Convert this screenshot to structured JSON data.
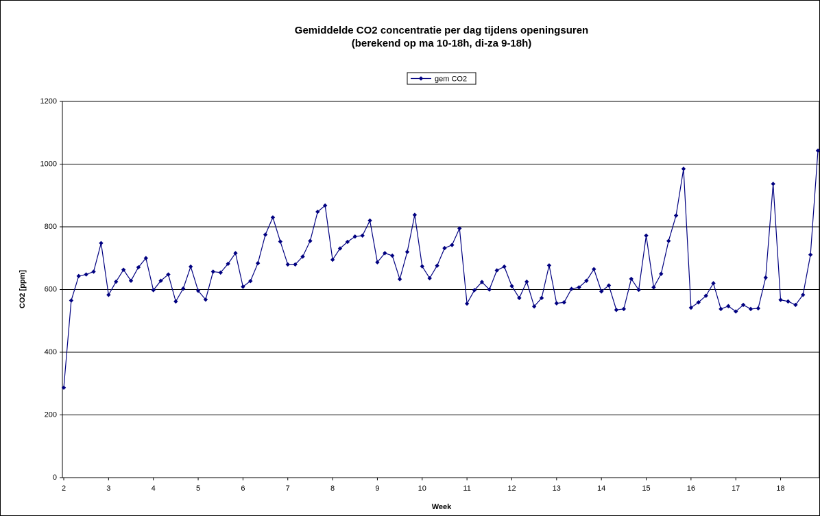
{
  "chart_data": {
    "type": "line",
    "title": "Gemiddelde CO2 concentratie per dag tijdens openingsuren",
    "subtitle": "(berekend op ma 10-18h, di-za 9-18h)",
    "x_label": "Week",
    "y_label": "CO2 [ppm]",
    "categories": [
      "2",
      null,
      null,
      null,
      null,
      null,
      "3",
      null,
      null,
      null,
      null,
      null,
      "4",
      null,
      null,
      null,
      null,
      null,
      "5",
      null,
      null,
      null,
      null,
      null,
      "6",
      null,
      null,
      null,
      null,
      null,
      "7",
      null,
      null,
      null,
      null,
      null,
      "8",
      null,
      null,
      null,
      null,
      null,
      "9",
      null,
      null,
      null,
      null,
      null,
      "10",
      null,
      null,
      null,
      null,
      null,
      "11",
      null,
      null,
      null,
      null,
      null,
      "12",
      null,
      null,
      null,
      null,
      null,
      "13",
      null,
      null,
      null,
      null,
      null,
      "14",
      null,
      null,
      null,
      null,
      null,
      "15",
      null,
      null,
      null,
      null,
      null,
      "16",
      null,
      null,
      null,
      null,
      null,
      "17",
      null,
      null,
      null,
      null,
      null,
      "18",
      null,
      null,
      null,
      null,
      null
    ],
    "series": [
      {
        "name": "gem CO2",
        "color": "#000080",
        "values": [
          287,
          565,
          643,
          648,
          657,
          748,
          583,
          625,
          663,
          628,
          671,
          700,
          598,
          628,
          648,
          562,
          603,
          673,
          596,
          568,
          657,
          654,
          682,
          716,
          609,
          627,
          684,
          775,
          830,
          753,
          680,
          680,
          705,
          755,
          848,
          868,
          695,
          731,
          752,
          769,
          772,
          820,
          687,
          716,
          708,
          633,
          720,
          838,
          674,
          636,
          676,
          732,
          742,
          795,
          555,
          598,
          624,
          600,
          661,
          673,
          611,
          573,
          625,
          546,
          573,
          677,
          556,
          559,
          602,
          607,
          628,
          665,
          594,
          613,
          535,
          538,
          634,
          599,
          772,
          607,
          650,
          755,
          836,
          985,
          542,
          559,
          580,
          620,
          538,
          547,
          530,
          551,
          538,
          540,
          638,
          937,
          567,
          562,
          551,
          583,
          711,
          1043
        ]
      }
    ],
    "ylim": [
      0,
      1200
    ],
    "yticks": [
      0,
      200,
      400,
      600,
      800,
      1000,
      1200
    ],
    "grid": true,
    "legend": "top"
  }
}
